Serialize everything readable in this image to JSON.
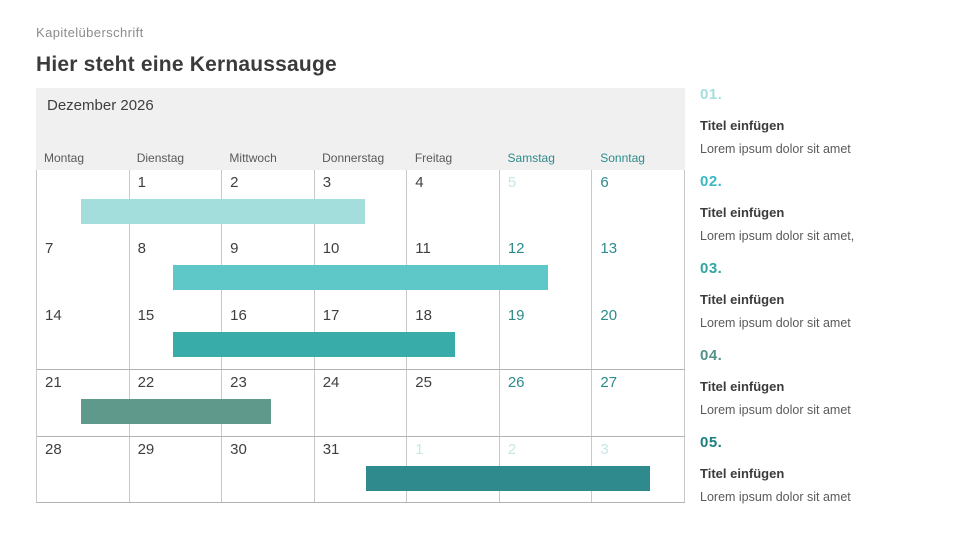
{
  "page": {
    "eyebrow": "Kapitelüberschrift",
    "title": "Hier steht eine Kernaussauge"
  },
  "colors": {
    "accent_teal": "#2E8B8B",
    "header_bg": "#F0F0F0",
    "pale_day": "#C6E7E5"
  },
  "calendar": {
    "month_title": "Dezember 2026",
    "weekday_headers": [
      {
        "label": "Montag",
        "weekend": false
      },
      {
        "label": "Dienstag",
        "weekend": false
      },
      {
        "label": "Mittwoch",
        "weekend": false
      },
      {
        "label": "Donnerstag",
        "weekend": false
      },
      {
        "label": "Freitag",
        "weekend": false
      },
      {
        "label": "Samstag",
        "weekend": true
      },
      {
        "label": "Sonntag",
        "weekend": true
      }
    ],
    "weeks": [
      {
        "rule_above": false,
        "days": [
          {
            "label": "",
            "style": "empty"
          },
          {
            "label": "1",
            "style": "day"
          },
          {
            "label": "2",
            "style": "day"
          },
          {
            "label": "3",
            "style": "day"
          },
          {
            "label": "4",
            "style": "day"
          },
          {
            "label": "5",
            "style": "pale"
          },
          {
            "label": "6",
            "style": "weekend"
          }
        ],
        "bar": {
          "color": "#A3DEDC",
          "start_col": 0.47,
          "end_col": 3.54
        }
      },
      {
        "rule_above": false,
        "days": [
          {
            "label": "7",
            "style": "day"
          },
          {
            "label": "8",
            "style": "day"
          },
          {
            "label": "9",
            "style": "day"
          },
          {
            "label": "10",
            "style": "day"
          },
          {
            "label": "11",
            "style": "day"
          },
          {
            "label": "12",
            "style": "weekend"
          },
          {
            "label": "13",
            "style": "weekend"
          }
        ],
        "bar": {
          "color": "#5EC8C8",
          "start_col": 1.47,
          "end_col": 5.52
        }
      },
      {
        "rule_above": false,
        "days": [
          {
            "label": "14",
            "style": "day"
          },
          {
            "label": "15",
            "style": "day"
          },
          {
            "label": "16",
            "style": "day"
          },
          {
            "label": "17",
            "style": "day"
          },
          {
            "label": "18",
            "style": "day"
          },
          {
            "label": "19",
            "style": "weekend"
          },
          {
            "label": "20",
            "style": "weekend"
          }
        ],
        "bar": {
          "color": "#38ACA8",
          "start_col": 1.47,
          "end_col": 4.52
        }
      },
      {
        "rule_above": true,
        "days": [
          {
            "label": "21",
            "style": "day"
          },
          {
            "label": "22",
            "style": "day"
          },
          {
            "label": "23",
            "style": "day"
          },
          {
            "label": "24",
            "style": "day"
          },
          {
            "label": "25",
            "style": "day"
          },
          {
            "label": "26",
            "style": "weekend"
          },
          {
            "label": "27",
            "style": "weekend"
          }
        ],
        "bar": {
          "color": "#5F998C",
          "start_col": 0.47,
          "end_col": 2.53
        }
      },
      {
        "rule_above": true,
        "days": [
          {
            "label": "28",
            "style": "day"
          },
          {
            "label": "29",
            "style": "day"
          },
          {
            "label": "30",
            "style": "day"
          },
          {
            "label": "31",
            "style": "day"
          },
          {
            "label": "1",
            "style": "pale"
          },
          {
            "label": "2",
            "style": "pale"
          },
          {
            "label": "3",
            "style": "pale"
          }
        ],
        "bar": {
          "color": "#2E8A8C",
          "start_col": 3.55,
          "end_col": 6.62
        }
      }
    ]
  },
  "sidebar": {
    "items": [
      {
        "number": "01.",
        "number_color": "#A5DEDE",
        "title": "Titel einfügen",
        "body": "Lorem ipsum dolor sit amet"
      },
      {
        "number": "02.",
        "number_color": "#3BB9C1",
        "title": "Titel einfügen",
        "body": "Lorem ipsum dolor sit amet,"
      },
      {
        "number": "03.",
        "number_color": "#2FA5A3",
        "title": "Titel einfügen",
        "body": "Lorem ipsum dolor sit amet"
      },
      {
        "number": "04.",
        "number_color": "#55928B",
        "title": "Titel einfügen",
        "body": "Lorem ipsum dolor sit amet"
      },
      {
        "number": "05.",
        "number_color": "#1E7E7E",
        "title": "Titel einfügen",
        "body": "Lorem ipsum dolor sit amet"
      }
    ]
  }
}
